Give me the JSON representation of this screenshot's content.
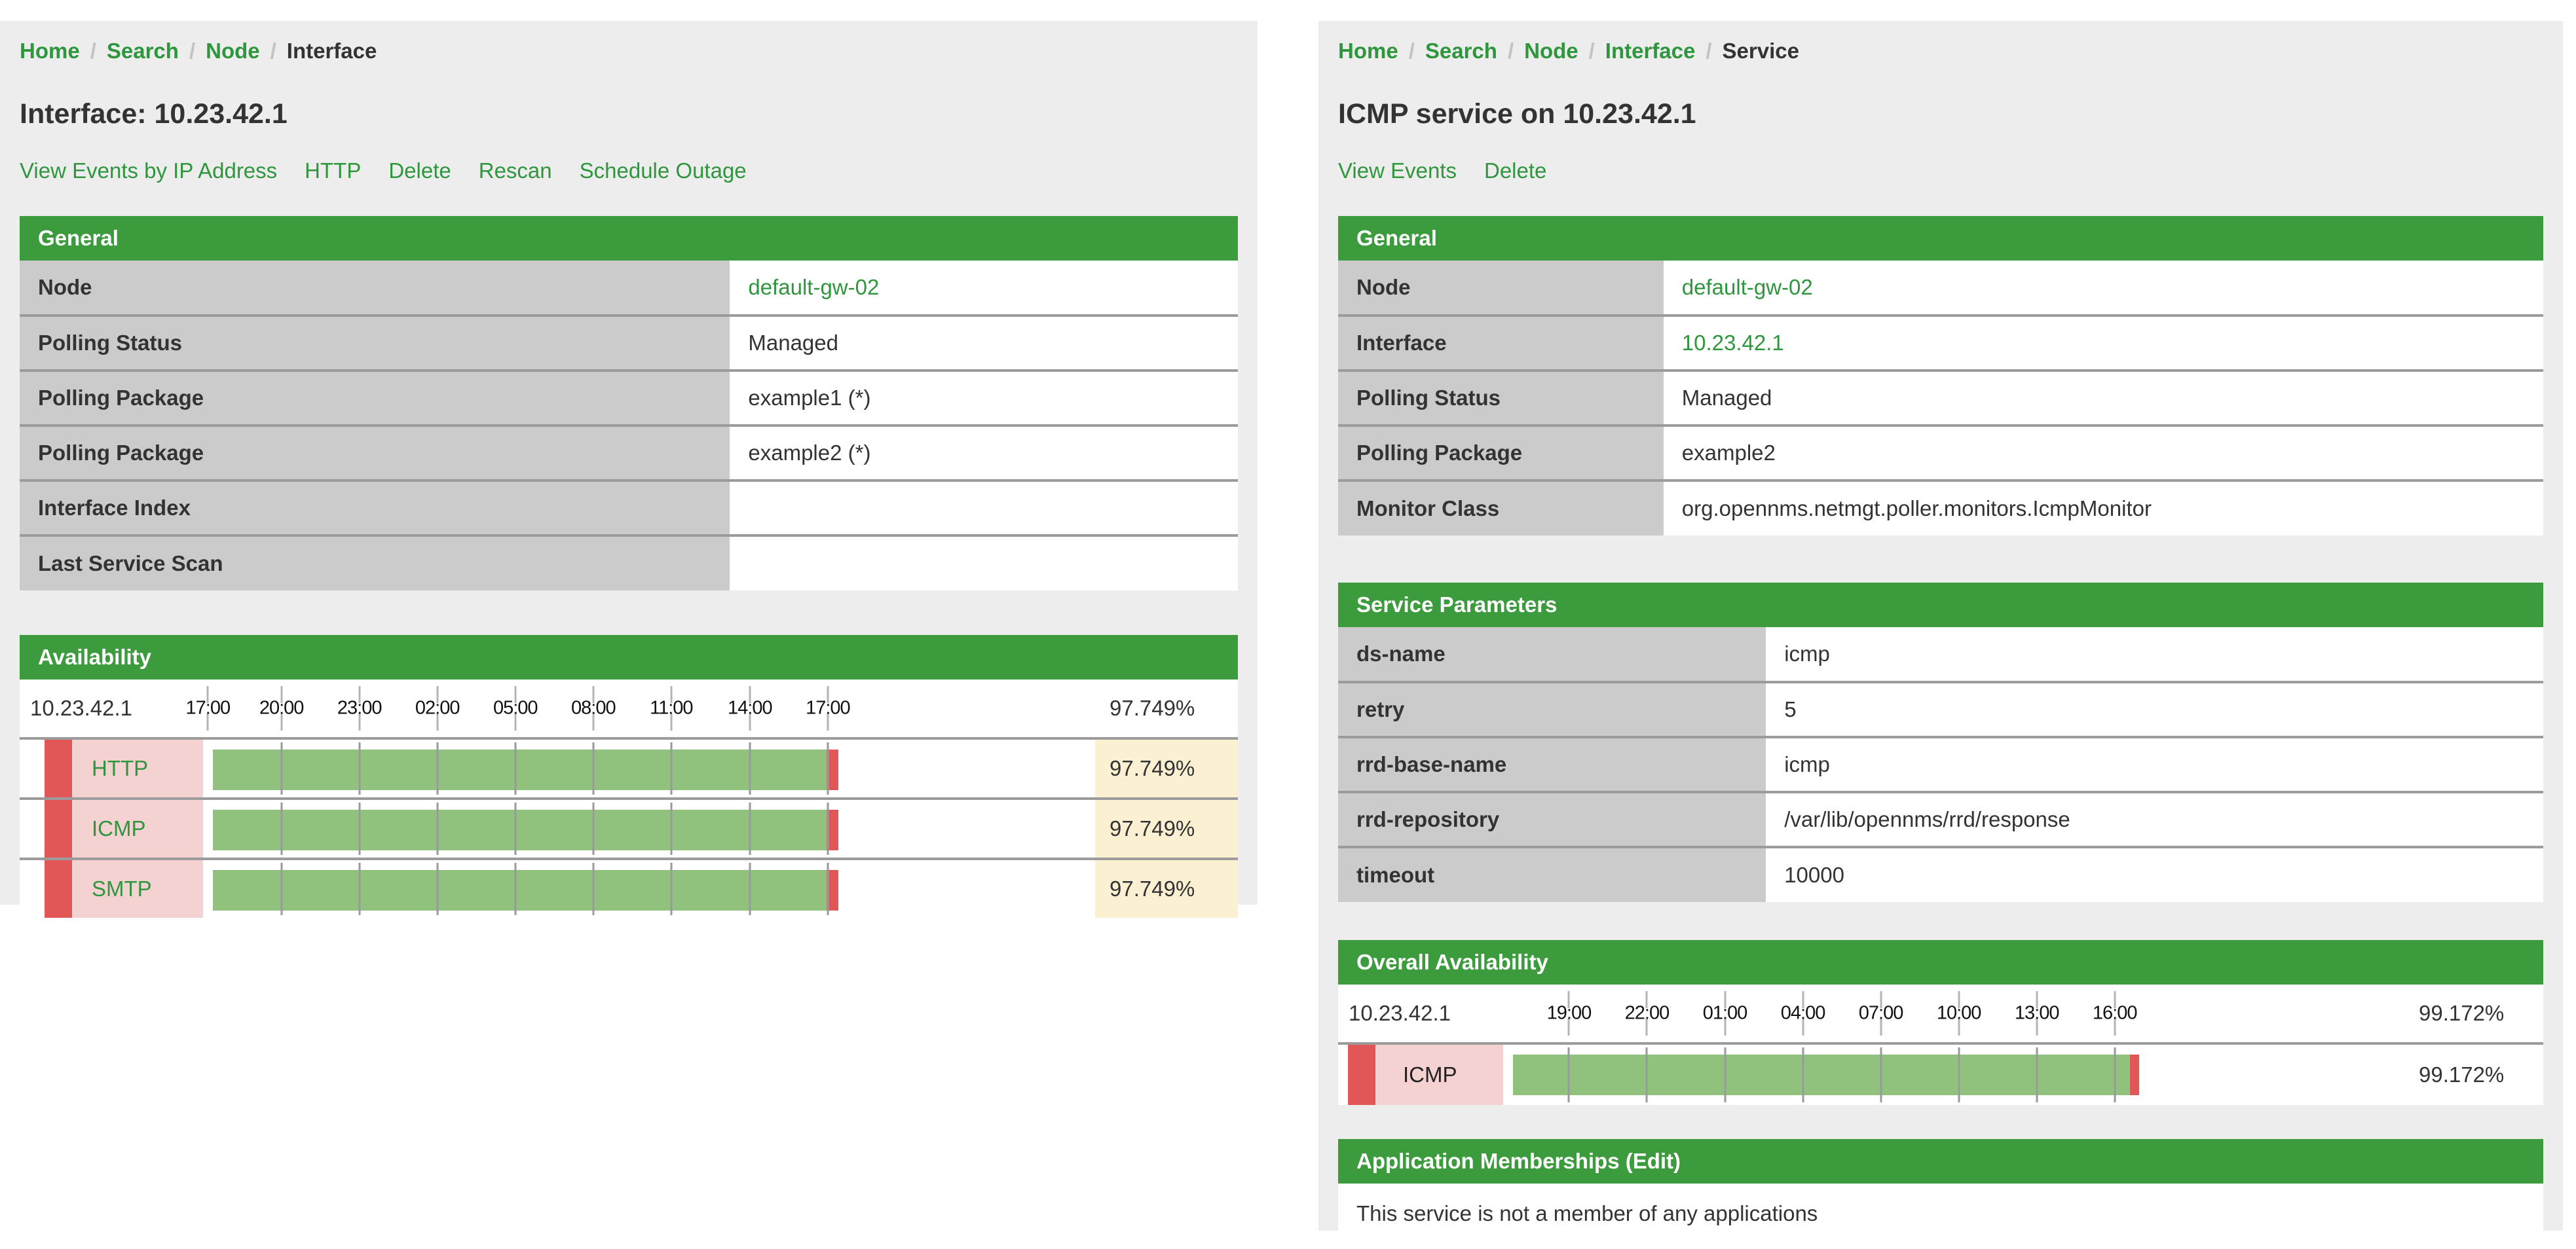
{
  "colors": {
    "panel_heading_green": "#3c9b3d",
    "link_green": "#2e963d",
    "label_cell_gray": "#cbcbcb",
    "card_background": "#ededed",
    "row_border_gray": "#9b9b9b",
    "availability_bar_green": "#90c17d",
    "availability_red": "#e15757",
    "service_cell_pink": "#f5d2d2",
    "value_cell_yellow": "#fcf0d2"
  },
  "left_page": {
    "breadcrumb": {
      "separator": "/",
      "home": "Home",
      "search": "Search",
      "node": "Node",
      "current": "Interface"
    },
    "title": "Interface: 10.23.42.1",
    "actions": {
      "view_events": "View Events by IP Address",
      "http": "HTTP",
      "delete": "Delete",
      "rescan": "Rescan",
      "schedule_outage": "Schedule Outage"
    },
    "general": {
      "heading": "General",
      "rows": [
        {
          "label": "Node",
          "value": "default-gw-02"
        },
        {
          "label": "Polling Status",
          "value": "Managed"
        },
        {
          "label": "Polling Package",
          "value": "example1 (*)"
        },
        {
          "label": "Polling Package",
          "value": "example2 (*)"
        },
        {
          "label": "Interface Index",
          "value": ""
        },
        {
          "label": "Last Service Scan",
          "value": ""
        }
      ]
    },
    "availability": {
      "heading": "Availability",
      "ip_address": "10.23.42.1",
      "overall_percent": "97.749%",
      "timeline": {
        "labels": [
          "17:00",
          "20:00",
          "23:00",
          "02:00",
          "05:00",
          "08:00",
          "11:00",
          "14:00",
          "17:00"
        ],
        "positions": [
          -0.8,
          10.9,
          23.3,
          35.7,
          48.1,
          60.5,
          72.9,
          85.4,
          97.8
        ]
      },
      "rows": [
        {
          "service": "HTTP",
          "percent": "97.749%",
          "availability_value": 97.749
        },
        {
          "service": "ICMP",
          "percent": "97.749%",
          "availability_value": 97.749
        },
        {
          "service": "SMTP",
          "percent": "97.749%",
          "availability_value": 97.749
        }
      ]
    }
  },
  "right_page": {
    "breadcrumb": {
      "separator": "/",
      "home": "Home",
      "search": "Search",
      "node": "Node",
      "interface": "Interface",
      "current": "Service"
    },
    "title": "ICMP service on 10.23.42.1",
    "actions": {
      "view_events": "View Events",
      "delete": "Delete"
    },
    "general": {
      "heading": "General",
      "rows": [
        {
          "label": "Node",
          "value": "default-gw-02"
        },
        {
          "label": "Interface",
          "value": "10.23.42.1"
        },
        {
          "label": "Polling Status",
          "value": "Managed"
        },
        {
          "label": "Polling Package",
          "value": "example2"
        },
        {
          "label": "Monitor Class",
          "value": "org.opennms.netmgt.poller.monitors.IcmpMonitor"
        }
      ]
    },
    "service_parameters": {
      "heading": "Service Parameters",
      "rows": [
        {
          "label": "ds-name",
          "value": "icmp"
        },
        {
          "label": "retry",
          "value": "5"
        },
        {
          "label": "rrd-base-name",
          "value": "icmp"
        },
        {
          "label": "rrd-repository",
          "value": "/var/lib/opennms/rrd/response"
        },
        {
          "label": "timeout",
          "value": "10000"
        }
      ]
    },
    "overall_availability": {
      "heading": "Overall Availability",
      "ip_address": "10.23.42.1",
      "overall_percent": "99.172%",
      "timeline": {
        "labels": [
          "19:00",
          "22:00",
          "01:00",
          "04:00",
          "07:00",
          "10:00",
          "13:00",
          "16:00"
        ],
        "positions": [
          8.9,
          21.3,
          33.7,
          46.1,
          58.5,
          70.9,
          83.3,
          95.7
        ]
      },
      "rows": [
        {
          "service": "ICMP",
          "percent": "99.172%",
          "availability_value": 99.172
        }
      ]
    },
    "application_memberships": {
      "heading": "Application Memberships",
      "edit_link": "(Edit)",
      "body": "This service is not a member of any applications"
    }
  }
}
